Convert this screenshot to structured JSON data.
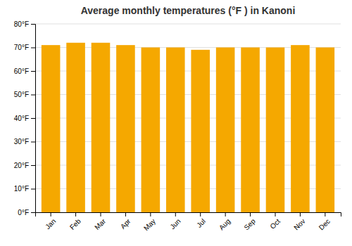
{
  "chart_data": {
    "type": "bar",
    "title": "Average monthly temperatures (°F ) in Kanoni",
    "categories": [
      "Jan",
      "Feb",
      "Mar",
      "Apr",
      "May",
      "Jun",
      "Jul",
      "Aug",
      "Sep",
      "Oct",
      "Nov",
      "Dec"
    ],
    "values": [
      71,
      72,
      72,
      71,
      70,
      70,
      69,
      70,
      70,
      70,
      71,
      70
    ],
    "color": "#F5A800",
    "ylim": [
      0,
      80
    ],
    "yticks": [
      {
        "value": 0,
        "label": "0°F"
      },
      {
        "value": 10,
        "label": "10°F"
      },
      {
        "value": 20,
        "label": "20°F"
      },
      {
        "value": 30,
        "label": "30°F"
      },
      {
        "value": 40,
        "label": "40°F"
      },
      {
        "value": 50,
        "label": "50°F"
      },
      {
        "value": 60,
        "label": "60°F"
      },
      {
        "value": 70,
        "label": "70°F"
      },
      {
        "value": 80,
        "label": "80°F"
      }
    ],
    "grid": true
  }
}
